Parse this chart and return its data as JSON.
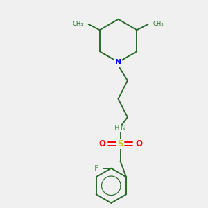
{
  "bg_color": "#f0f0f0",
  "bond_color": "#2a6a2a",
  "bond_width": 1.4,
  "atom_colors": {
    "N_piperidine": "#0000ff",
    "N_sulfonamide": "#5a9a5a",
    "S": "#cccc00",
    "O": "#ff0000",
    "F": "#5a9a5a",
    "C": "#2a6a2a"
  },
  "figsize": [
    3.0,
    3.0
  ],
  "dpi": 100,
  "xlim": [
    0,
    10
  ],
  "ylim": [
    0,
    10
  ]
}
